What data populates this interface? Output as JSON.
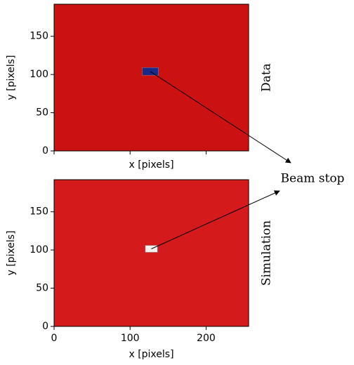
{
  "chart_data": [
    {
      "type": "heatmap",
      "xlabel": "x [pixels]",
      "ylabel": "y [pixels]",
      "side_label": "Data",
      "xlim": [
        0,
        256
      ],
      "ylim": [
        0,
        192
      ],
      "yticks": [
        0,
        50,
        100,
        150
      ],
      "color": "#cc1111",
      "beam_stop": {
        "x": [
          116,
          137
        ],
        "y": [
          99,
          109
        ],
        "color": "#1a2a8a"
      }
    },
    {
      "type": "heatmap",
      "xlabel": "x [pixels]",
      "ylabel": "y [pixels]",
      "side_label": "Simulation",
      "xlim": [
        0,
        256
      ],
      "ylim": [
        0,
        192
      ],
      "yticks": [
        0,
        50,
        100,
        150
      ],
      "xticks": [
        0,
        100,
        200
      ],
      "color": "#d41a1a",
      "beam_stop": {
        "x": [
          120,
          136
        ],
        "y": [
          97,
          106
        ],
        "color": "#f4f0f0"
      }
    }
  ],
  "annotation": "Beam stop"
}
